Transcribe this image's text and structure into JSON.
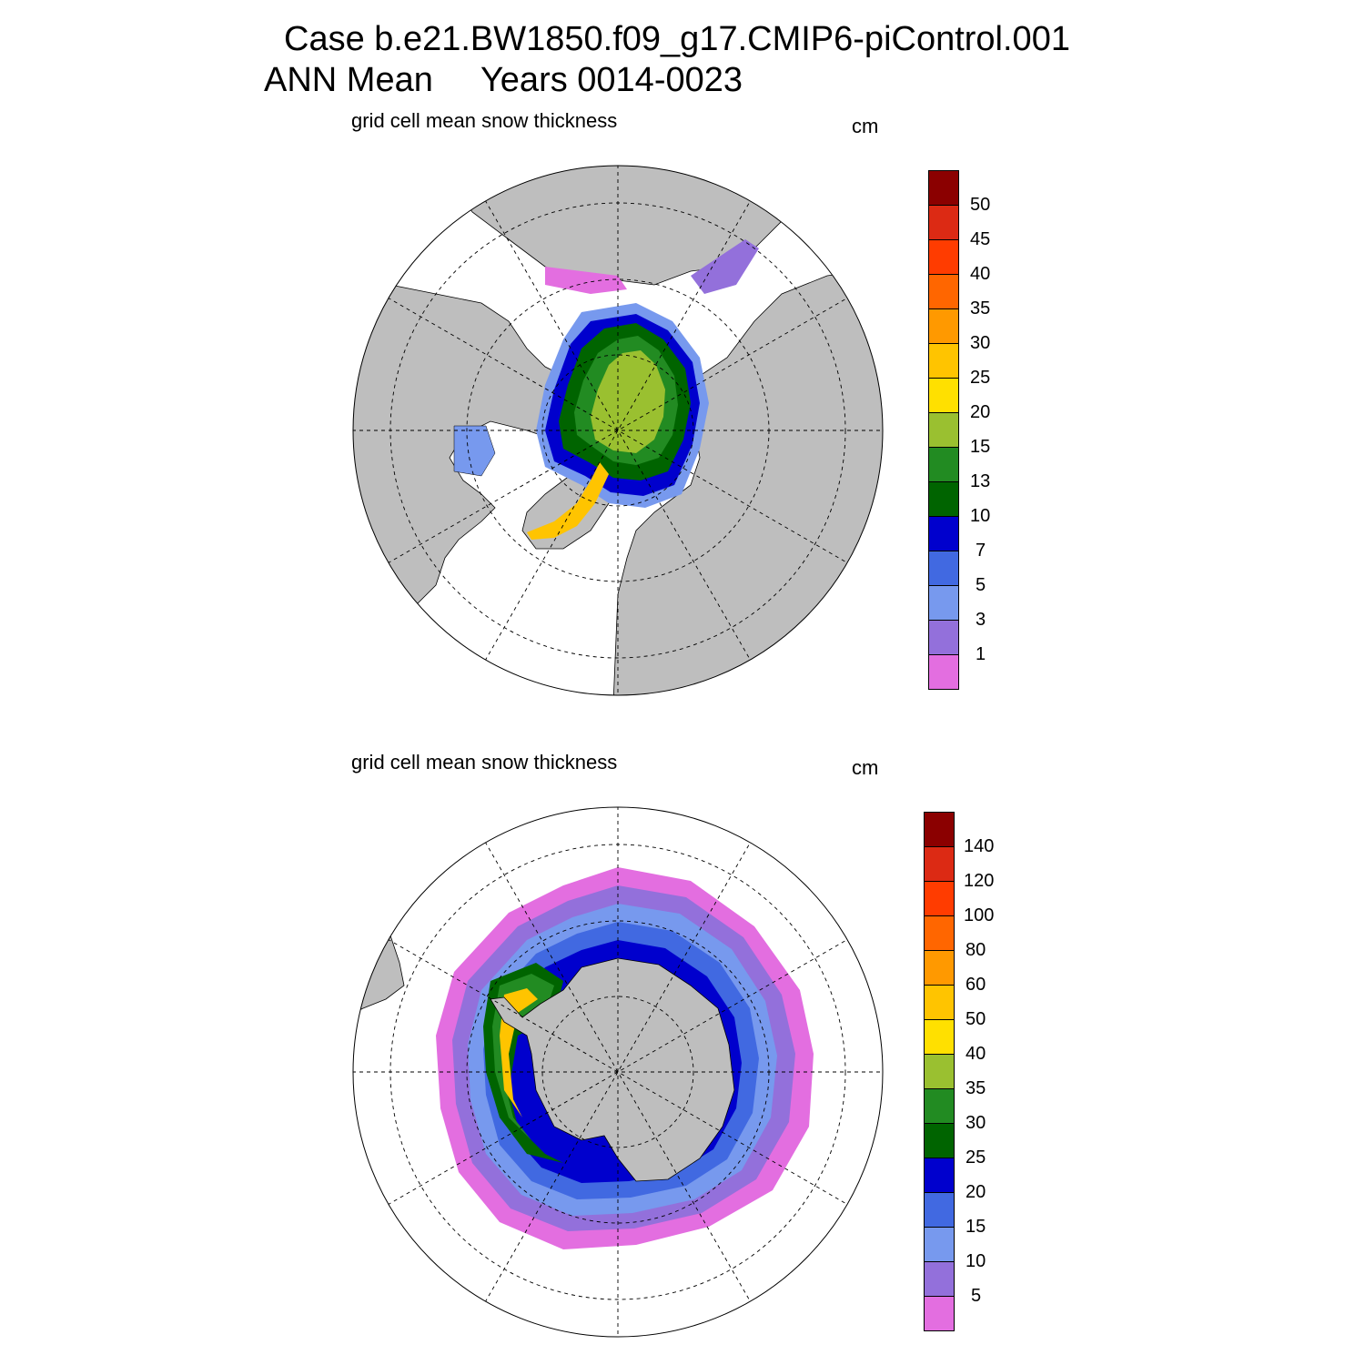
{
  "header": {
    "case_line": "Case b.e21.BW1850.f09_g17.CMIP6-piControl.001",
    "period_line": "ANN Mean     Years 0014-0023"
  },
  "panels": [
    {
      "id": "north",
      "hemisphere": "Northern Hemisphere",
      "title": "grid cell mean snow thickness",
      "units": "cm",
      "levels": [
        "50",
        "45",
        "40",
        "35",
        "30",
        "25",
        "20",
        "15",
        "13",
        "10",
        "7",
        "5",
        "3",
        "1"
      ]
    },
    {
      "id": "south",
      "hemisphere": "Southern Hemisphere",
      "title": "grid cell mean snow thickness",
      "units": "cm",
      "levels": [
        "140",
        "120",
        "100",
        "80",
        "60",
        "50",
        "40",
        "35",
        "30",
        "25",
        "20",
        "15",
        "10",
        "5"
      ]
    }
  ],
  "colors": {
    "land": "#bebebe",
    "ocean": "#ffffff",
    "palette_top_to_bottom": [
      "#8b0000",
      "#dc2a14",
      "#ff3c00",
      "#ff6600",
      "#ff9900",
      "#ffc400",
      "#ffe000",
      "#9ac030",
      "#228b22",
      "#006400",
      "#0000cd",
      "#4169e1",
      "#7799ee",
      "#9370db",
      "#e36ee0"
    ]
  }
}
